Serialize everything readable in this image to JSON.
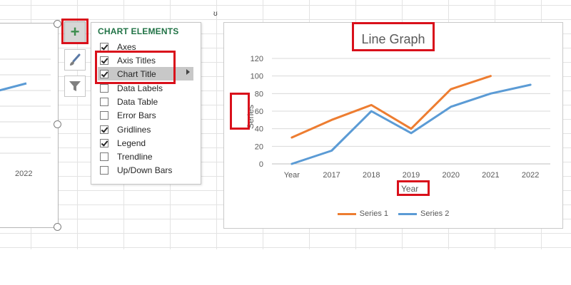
{
  "flyout": {
    "title": "CHART ELEMENTS",
    "items": [
      {
        "label": "Axes",
        "checked": true
      },
      {
        "label": "Axis Titles",
        "checked": true
      },
      {
        "label": "Chart Title",
        "checked": true
      },
      {
        "label": "Data Labels",
        "checked": false
      },
      {
        "label": "Data Table",
        "checked": false
      },
      {
        "label": "Error Bars",
        "checked": false
      },
      {
        "label": "Gridlines",
        "checked": true
      },
      {
        "label": "Legend",
        "checked": true
      },
      {
        "label": "Trendline",
        "checked": false
      },
      {
        "label": "Up/Down Bars",
        "checked": false
      }
    ]
  },
  "tools": {
    "add_icon": "plus-icon",
    "style_icon": "paintbrush-icon",
    "filter_icon": "funnel-icon"
  },
  "left_chart": {
    "year_label": "2022"
  },
  "colors": {
    "series1": "#ed7d31",
    "series2": "#5b9bd5",
    "highlight_box": "#d9101b",
    "flyout_title": "#217346"
  },
  "chart_data": {
    "type": "line",
    "title": "Line Graph",
    "xlabel": "Year",
    "ylabel": "Series",
    "categories": [
      "Year",
      "2017",
      "2018",
      "2019",
      "2020",
      "2021",
      "2022"
    ],
    "ylim": [
      0,
      120
    ],
    "yticks": [
      0,
      20,
      40,
      60,
      80,
      100,
      120
    ],
    "grid": true,
    "legend_position": "bottom",
    "series": [
      {
        "name": "Series 1",
        "values": [
          30,
          50,
          67,
          40,
          85,
          100,
          null
        ]
      },
      {
        "name": "Series 2",
        "values": [
          0,
          15,
          60,
          35,
          65,
          80,
          90
        ]
      }
    ]
  }
}
